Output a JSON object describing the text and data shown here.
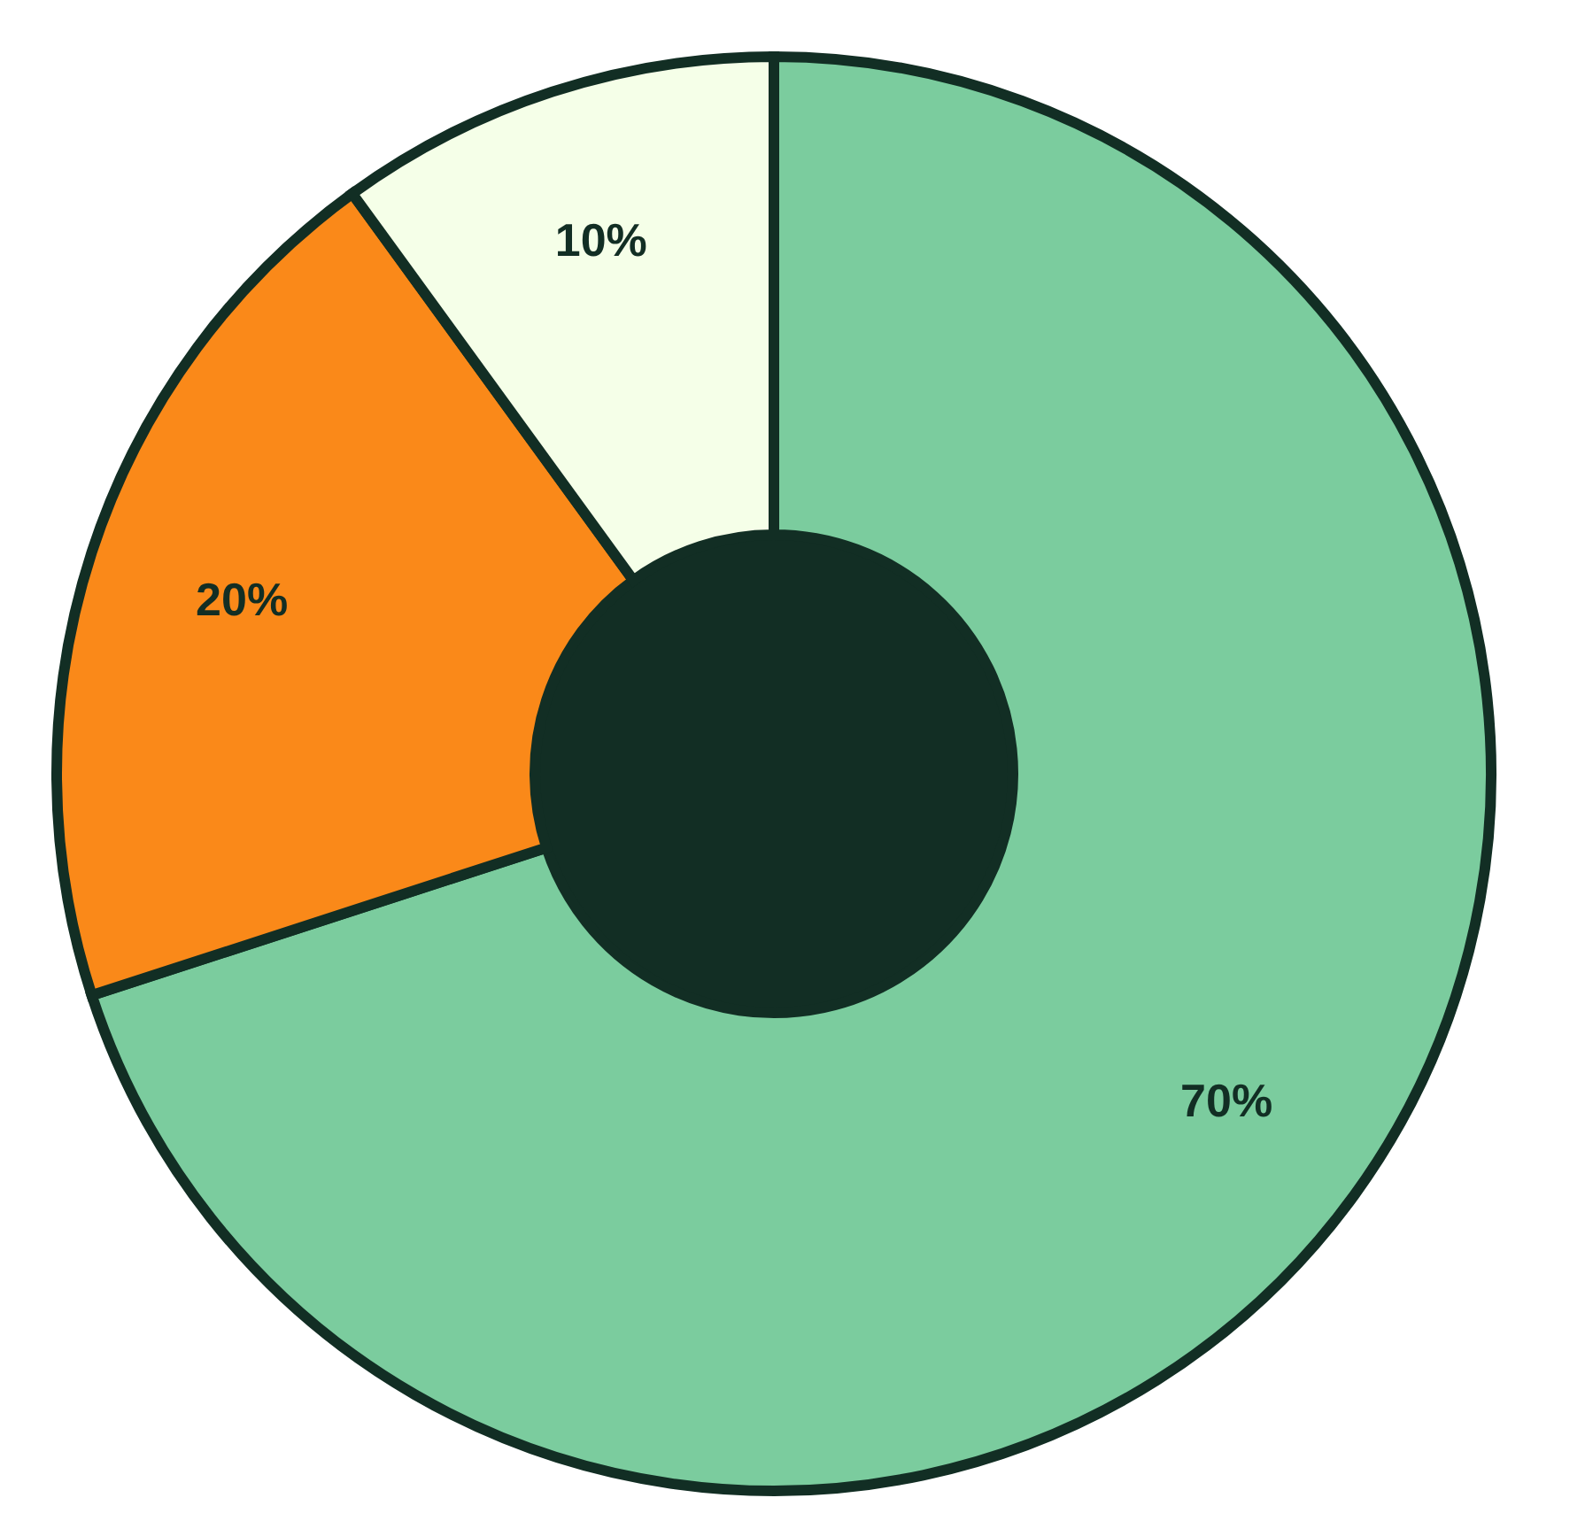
{
  "chart_data": {
    "type": "donut",
    "categories": [
      null,
      null,
      null
    ],
    "values": [
      70,
      20,
      10
    ],
    "colors": [
      "#7bcc9e",
      "#fa8919",
      "#f5ffe8"
    ],
    "value_labels": [
      "70%",
      "20%",
      "10%"
    ],
    "legend": false
  }
}
